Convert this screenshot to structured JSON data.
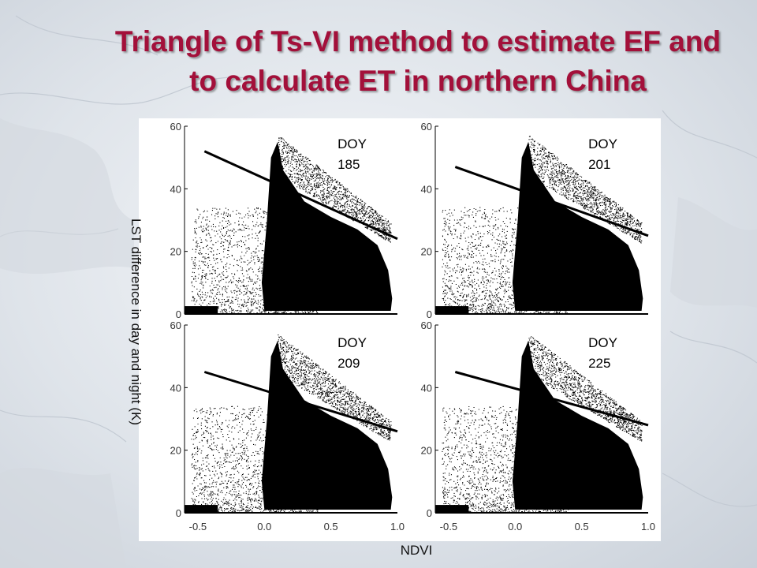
{
  "title": {
    "line1": "Triangle of Ts-VI method to estimate EF and",
    "line2": "to calculate ET in northern China"
  },
  "axes": {
    "xlabel": "NDVI",
    "ylabel": "LST difference in day and night (K)"
  },
  "colors": {
    "title": "#a3103a",
    "points": "#000000",
    "background": "#dfe4ea"
  },
  "chart_data": [
    {
      "type": "scatter",
      "annotation_lines": [
        "DOY",
        "185"
      ],
      "xlim": [
        -0.6,
        1.0
      ],
      "ylim": [
        0,
        60
      ],
      "x_ticks": [
        "-0.5",
        "0.0",
        "0.5",
        "1.0"
      ],
      "y_ticks": [
        "0",
        "20",
        "40",
        "60"
      ],
      "dry_edge": {
        "x": [
          -0.45,
          1.0
        ],
        "y": [
          52,
          24
        ]
      }
    },
    {
      "type": "scatter",
      "annotation_lines": [
        "DOY",
        "201"
      ],
      "xlim": [
        -0.6,
        1.0
      ],
      "ylim": [
        0,
        60
      ],
      "x_ticks": [
        "-0.5",
        "0.0",
        "0.5",
        "1.0"
      ],
      "y_ticks": [
        "0",
        "20",
        "40",
        "60"
      ],
      "dry_edge": {
        "x": [
          -0.45,
          1.0
        ],
        "y": [
          47,
          25
        ]
      }
    },
    {
      "type": "scatter",
      "annotation_lines": [
        "DOY",
        "209"
      ],
      "xlim": [
        -0.6,
        1.0
      ],
      "ylim": [
        0,
        60
      ],
      "x_ticks": [
        "-0.5",
        "0.0",
        "0.5",
        "1.0"
      ],
      "y_ticks": [
        "0",
        "20",
        "40",
        "60"
      ],
      "dry_edge": {
        "x": [
          -0.45,
          1.0
        ],
        "y": [
          45,
          26
        ]
      }
    },
    {
      "type": "scatter",
      "annotation_lines": [
        "DOY",
        "225"
      ],
      "xlim": [
        -0.6,
        1.0
      ],
      "ylim": [
        0,
        60
      ],
      "x_ticks": [
        "-0.5",
        "0.0",
        "0.5",
        "1.0"
      ],
      "y_ticks": [
        "0",
        "20",
        "40",
        "60"
      ],
      "dry_edge": {
        "x": [
          -0.45,
          1.0
        ],
        "y": [
          45,
          28
        ]
      }
    }
  ]
}
